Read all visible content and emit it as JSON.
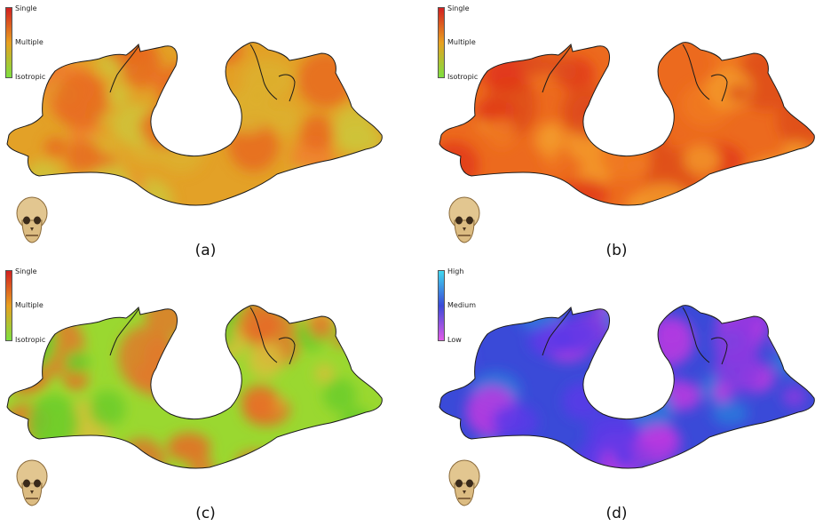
{
  "panels": [
    {
      "caption": "(a)",
      "legend": {
        "top": "Single",
        "mid": "Multiple",
        "bot": "Isotropic",
        "colors": [
          "#d22020",
          "#e8a020",
          "#7ee040"
        ]
      },
      "surface": {
        "base": "#e3a127",
        "blotches": [
          "#e86a1e",
          "#cfc43a",
          "#f08030",
          "#dcb030"
        ]
      }
    },
    {
      "caption": "(b)",
      "legend": {
        "top": "Single",
        "mid": "Multiple",
        "bot": "Isotropic",
        "colors": [
          "#d22020",
          "#e8a020",
          "#7ee040"
        ]
      },
      "surface": {
        "base": "#ec6a1e",
        "blotches": [
          "#e23a1a",
          "#f39a2a",
          "#de4c1a",
          "#f07a22"
        ]
      }
    },
    {
      "caption": "(c)",
      "legend": {
        "top": "Single",
        "mid": "Multiple",
        "bot": "Isotropic",
        "colors": [
          "#d22020",
          "#e8a020",
          "#7ee040"
        ]
      },
      "surface": {
        "base": "#9ad830",
        "blotches": [
          "#e07a2a",
          "#d8c03a",
          "#6acc2a",
          "#e86a26"
        ]
      }
    },
    {
      "caption": "(d)",
      "legend": {
        "top": "High",
        "mid": "Medium",
        "bot": "Low",
        "colors": [
          "#40d8f0",
          "#3a4ad8",
          "#e05ae8"
        ]
      },
      "surface": {
        "base": "#3a4ad8",
        "blotches": [
          "#8a3ae0",
          "#2a7adc",
          "#c03ae0",
          "#5a3ae8"
        ]
      }
    }
  ]
}
